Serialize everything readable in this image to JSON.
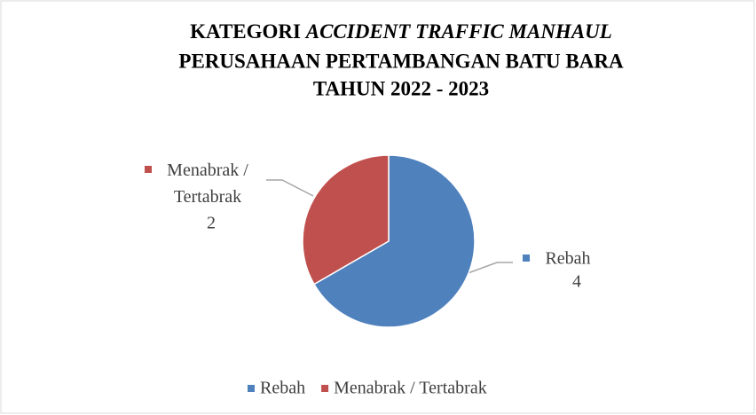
{
  "chart_data": {
    "type": "pie",
    "title": {
      "lead": "KATEGORI",
      "emphasis": "ACCIDENT TRAFFIC MANHAUL",
      "line2": "PERUSAHAAN PERTAMBANGAN BATU BARA",
      "line3": "TAHUN 2022 - 2023"
    },
    "categories": [
      "Rebah",
      "Menabrak / Tertabrak"
    ],
    "values": [
      4,
      2
    ],
    "colors": [
      "#4f81bd",
      "#c0504d"
    ],
    "legend": "bottom"
  }
}
